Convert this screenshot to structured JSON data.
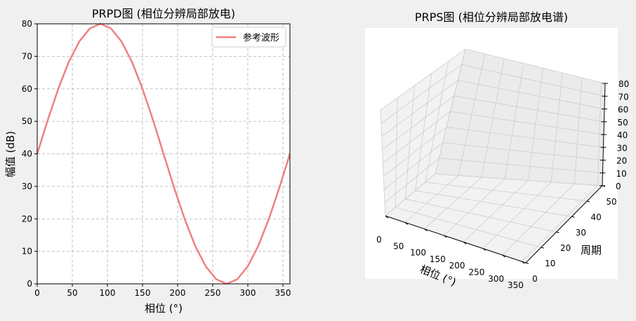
{
  "chart_data": [
    {
      "type": "line",
      "title": "PRPD图 (相位分辨局部放电)",
      "xlabel": "相位 (°)",
      "ylabel": "幅值 (dB)",
      "xlim": [
        0,
        360
      ],
      "ylim": [
        0,
        80
      ],
      "xticks": [
        0,
        50,
        100,
        150,
        200,
        250,
        300,
        350
      ],
      "yticks": [
        0,
        10,
        20,
        30,
        40,
        50,
        60,
        70,
        80
      ],
      "grid": true,
      "grid_style": "dashed",
      "legend_position": "top-right",
      "series": [
        {
          "name": "参考波形",
          "color": "#f08080",
          "x": [
            0,
            15,
            30,
            45,
            60,
            75,
            90,
            105,
            120,
            135,
            150,
            165,
            180,
            195,
            210,
            225,
            240,
            255,
            270,
            285,
            300,
            315,
            330,
            345,
            360
          ],
          "y": [
            40,
            50.4,
            60,
            68.3,
            74.6,
            78.6,
            80,
            78.6,
            74.6,
            68.3,
            60,
            50.4,
            40,
            29.6,
            20,
            11.7,
            5.4,
            1.4,
            0,
            1.4,
            5.4,
            11.7,
            20,
            29.6,
            40
          ]
        }
      ]
    },
    {
      "type": "3d",
      "title": "PRPS图 (相位分辨局部放电谱)",
      "xlabel": "相位 (°)",
      "ylabel": "周期",
      "zlabel": "",
      "xlim": [
        0,
        360
      ],
      "ylim": [
        0,
        50
      ],
      "zlim": [
        0,
        80
      ],
      "xticks": [
        0,
        50,
        100,
        150,
        200,
        250,
        300,
        350
      ],
      "yticks": [
        0,
        10,
        20,
        30,
        40,
        50
      ],
      "zticks": [
        0,
        10,
        20,
        30,
        40,
        50,
        60,
        70,
        80
      ],
      "grid": true,
      "series": []
    }
  ]
}
